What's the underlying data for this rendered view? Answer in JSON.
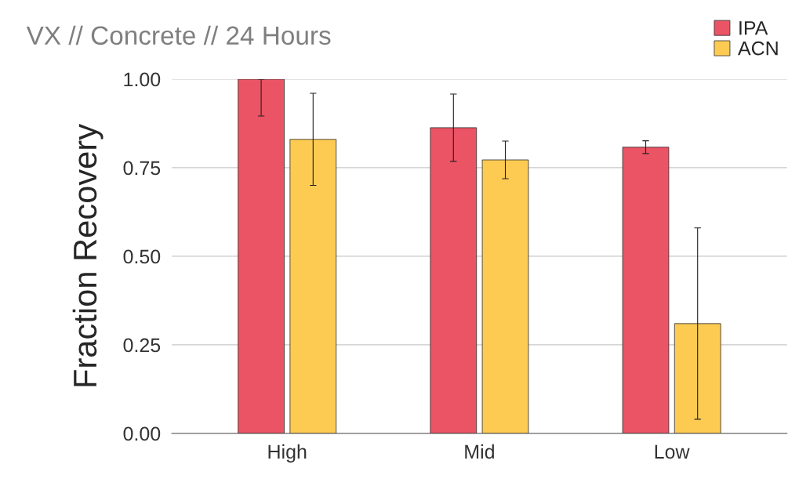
{
  "chart_data": {
    "type": "bar",
    "title": "VX // Concrete // 24 Hours",
    "ylabel": "Fraction Recovery",
    "categories": [
      "High",
      "Mid",
      "Low"
    ],
    "series": [
      {
        "name": "IPA",
        "color": "#ea5464",
        "values": [
          1.0,
          0.863,
          0.808
        ],
        "errors": [
          [
            0.896,
            1.0
          ],
          0.095,
          0.018
        ]
      },
      {
        "name": "ACN",
        "color": "#fecb52",
        "values": [
          0.83,
          0.772,
          0.31
        ],
        "errors": [
          0.13,
          0.053,
          0.27
        ]
      }
    ],
    "ylim": [
      0,
      1
    ],
    "yticks": [
      {
        "value": 0,
        "label": "0.00"
      },
      {
        "value": 0.25,
        "label": "0.25"
      },
      {
        "value": 0.5,
        "label": "0.50"
      },
      {
        "value": 0.75,
        "label": "0.75"
      },
      {
        "value": 1,
        "label": "1.00"
      }
    ],
    "grid": "y",
    "legend": "top right"
  }
}
